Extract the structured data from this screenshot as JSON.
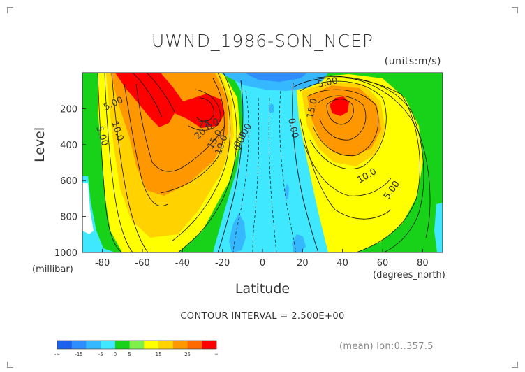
{
  "chart_data": {
    "type": "contour",
    "title": "UWND_1986-SON_NCEP",
    "units": "(units:m/s)",
    "xlabel": "Latitude",
    "x_units": "(degrees_north)",
    "ylabel": "Level",
    "y_units": "(millibar)",
    "xlim": [
      -90,
      90
    ],
    "ylim": [
      1000,
      0
    ],
    "x_ticks": [
      "-80",
      "-60",
      "-40",
      "-20",
      "0",
      "20",
      "40",
      "60",
      "80"
    ],
    "x_tick_values": [
      -80,
      -60,
      -40,
      -20,
      0,
      20,
      40,
      60,
      80
    ],
    "y_ticks": [
      "200",
      "400",
      "600",
      "800",
      "1000"
    ],
    "y_tick_values": [
      200,
      400,
      600,
      800,
      1000
    ],
    "contour_interval": "CONTOUR INTERVAL = 2.500E+00",
    "footer": "(mean) lon:0..357.5",
    "contour_labels": [
      "5.00",
      "10.0",
      "5.00",
      "10.0",
      "15.0",
      "20.0",
      "25.0",
      "0.000",
      "0.00",
      "15.0",
      "10.0",
      "5.00",
      "0.00",
      "5.00"
    ],
    "jets": [
      {
        "lat": -65,
        "level": 0,
        "peak": 30
      },
      {
        "lat": -28,
        "level": 200,
        "peak": 28
      },
      {
        "lat": 40,
        "level": 200,
        "peak": 26
      }
    ],
    "colorbar": {
      "labels": [
        "-∞",
        "-15",
        "-5",
        "0",
        "5",
        "15",
        "25",
        "∞"
      ],
      "colors": [
        "#1a62ee",
        "#2f8eff",
        "#35b8ff",
        "#40e8ff",
        "#18d21a",
        "#7ff04a",
        "#ffff00",
        "#ffd200",
        "#ff9800",
        "#ff6a00",
        "#ff0000"
      ]
    }
  }
}
